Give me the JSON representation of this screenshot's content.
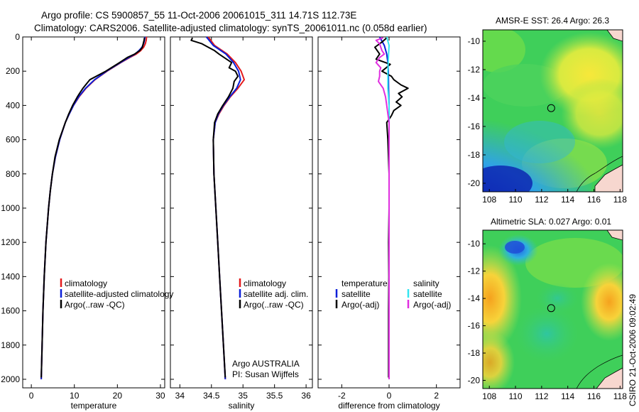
{
  "title": {
    "line1": "Argo profile: CS 5900857_55 11-Oct-2006 20061015_311 14.71S 112.73E",
    "line2": "Climatology: CARS2006. Satellite-adjusted climatology: synTS_20061011.nc (0.058d earlier)"
  },
  "colors": {
    "climatology": "#e41a1c",
    "satellite": "#0a1fd8",
    "argo": "#000000",
    "sat_salinity": "#33e5f0",
    "argo_salinity_adj": "#e02fe0"
  },
  "chart_data": [
    {
      "id": "temperature",
      "type": "line",
      "xlabel": "temperature",
      "xlim": [
        -2,
        31
      ],
      "ylim": [
        2050,
        0
      ],
      "xticks": [
        0,
        10,
        20,
        30
      ],
      "yticks": [
        0,
        200,
        400,
        600,
        800,
        1000,
        1200,
        1400,
        1600,
        1800,
        2000
      ],
      "legend": [
        "climatology",
        "satellite-adjusted climatology",
        "Argo(..raw -QC)"
      ],
      "series": [
        {
          "name": "climatology",
          "color_key": "climatology",
          "depth": [
            0,
            20,
            40,
            60,
            80,
            100,
            120,
            150,
            200,
            250,
            300,
            350,
            400,
            450,
            500,
            600,
            700,
            800,
            900,
            1000,
            1200,
            1400,
            1600,
            1800,
            2000
          ],
          "values": [
            26.8,
            26.7,
            26.5,
            26.1,
            25.4,
            24.4,
            22.9,
            20.8,
            17.6,
            14.8,
            12.7,
            11.1,
            9.8,
            8.8,
            7.9,
            6.6,
            5.6,
            4.9,
            4.4,
            4.0,
            3.4,
            3.0,
            2.7,
            2.5,
            2.3
          ]
        },
        {
          "name": "satellite-adjusted climatology",
          "color_key": "satellite",
          "depth": [
            0,
            20,
            40,
            60,
            80,
            100,
            120,
            150,
            200,
            250,
            300,
            350,
            400,
            450,
            500,
            600,
            700,
            800,
            900,
            1000,
            1200,
            1400,
            1600,
            1800,
            2000
          ],
          "values": [
            26.4,
            26.3,
            26.1,
            25.7,
            25.0,
            24.1,
            22.7,
            20.7,
            17.5,
            14.7,
            12.6,
            11.0,
            9.8,
            8.8,
            7.9,
            6.6,
            5.6,
            4.9,
            4.4,
            4.0,
            3.4,
            3.0,
            2.7,
            2.5,
            2.3
          ]
        },
        {
          "name": "Argo(..raw -QC)",
          "color_key": "argo",
          "depth": [
            5,
            20,
            40,
            60,
            80,
            100,
            120,
            150,
            200,
            250,
            300,
            330,
            350,
            400,
            450,
            500,
            600,
            700,
            800,
            900,
            1000,
            1200,
            1400,
            1600,
            1800,
            1990
          ],
          "values": [
            26.3,
            26.2,
            26.0,
            25.8,
            25.2,
            24.0,
            22.3,
            20.5,
            17.3,
            13.6,
            12.0,
            11.2,
            10.7,
            9.6,
            8.7,
            7.9,
            6.5,
            5.5,
            4.9,
            4.4,
            4.0,
            3.4,
            3.0,
            2.7,
            2.5,
            2.3
          ]
        }
      ]
    },
    {
      "id": "salinity",
      "type": "line",
      "xlabel": "salinity",
      "xlim": [
        33.85,
        36.1
      ],
      "ylim": [
        2050,
        0
      ],
      "xticks": [
        34,
        34.5,
        35,
        35.5,
        36
      ],
      "legend": [
        "climatology",
        "satellite adj. clim.",
        "Argo(..raw -QC)"
      ],
      "series": [
        {
          "name": "climatology",
          "color_key": "climatology",
          "depth": [
            0,
            50,
            100,
            150,
            200,
            250,
            300,
            350,
            400,
            450,
            500,
            600,
            800,
            1000,
            1200,
            1400,
            1600,
            1800,
            2000
          ],
          "values": [
            34.45,
            34.55,
            34.75,
            34.88,
            34.97,
            35.02,
            34.92,
            34.8,
            34.7,
            34.62,
            34.56,
            34.53,
            34.54,
            34.57,
            34.6,
            34.63,
            34.66,
            34.69,
            34.72
          ]
        },
        {
          "name": "satellite adj. clim.",
          "color_key": "satellite",
          "depth": [
            0,
            50,
            100,
            150,
            200,
            250,
            300,
            350,
            400,
            450,
            500,
            600,
            800,
            1000,
            1200,
            1400,
            1600,
            1800,
            2000
          ],
          "values": [
            34.42,
            34.53,
            34.73,
            34.85,
            34.93,
            34.96,
            34.9,
            34.79,
            34.69,
            34.61,
            34.56,
            34.53,
            34.54,
            34.57,
            34.6,
            34.63,
            34.66,
            34.69,
            34.72
          ]
        },
        {
          "name": "Argo(..raw -QC)",
          "color_key": "argo",
          "depth": [
            5,
            20,
            40,
            60,
            80,
            100,
            120,
            150,
            180,
            200,
            230,
            260,
            300,
            350,
            400,
            450,
            500,
            600,
            800,
            1000,
            1200,
            1400,
            1600,
            1800,
            1990
          ],
          "values": [
            34.2,
            34.18,
            34.35,
            34.45,
            34.55,
            34.62,
            34.7,
            34.82,
            34.78,
            34.88,
            34.92,
            34.86,
            34.84,
            34.77,
            34.68,
            34.6,
            34.55,
            34.53,
            34.54,
            34.57,
            34.6,
            34.63,
            34.66,
            34.69,
            34.72
          ]
        }
      ]
    },
    {
      "id": "difference",
      "type": "line",
      "xlabel": "difference from climatology",
      "xlim": [
        -3.0,
        3.0
      ],
      "ylim": [
        2050,
        0
      ],
      "xticks": [
        -2,
        0,
        2
      ],
      "legend_temperature": {
        "header": "temperature",
        "items": [
          "satellite",
          "Argo(-adj)"
        ]
      },
      "legend_salinity": {
        "header": "salinity",
        "items": [
          "satellite",
          "Argo(-adj)"
        ]
      },
      "series": [
        {
          "name": "temperature satellite",
          "color_key": "satellite",
          "depth": [
            0,
            50,
            100,
            150,
            200,
            300,
            400,
            600,
            800,
            1000,
            2000
          ],
          "values": [
            -0.4,
            -0.2,
            -0.1,
            -0.05,
            -0.03,
            -0.02,
            0.0,
            0.0,
            0.0,
            0.0,
            0.0
          ]
        },
        {
          "name": "temperature Argo(-adj)",
          "color_key": "argo",
          "depth": [
            5,
            30,
            60,
            100,
            130,
            160,
            200,
            230,
            250,
            280,
            300,
            330,
            350,
            380,
            400,
            430,
            460,
            500,
            600,
            800,
            1000,
            1200,
            1400,
            1600,
            1800,
            1990
          ],
          "values": [
            -0.1,
            -0.3,
            -0.6,
            -0.4,
            -0.55,
            0.05,
            -0.3,
            0.1,
            0.2,
            0.5,
            0.8,
            0.4,
            0.55,
            0.3,
            0.5,
            0.2,
            0.1,
            -0.1,
            -0.05,
            0.0,
            0.0,
            -0.02,
            -0.01,
            -0.02,
            -0.02,
            -0.02
          ]
        },
        {
          "name": "salinity satellite",
          "color_key": "sat_salinity",
          "depth": [
            0,
            50,
            100,
            200,
            300,
            400,
            600,
            800,
            1000,
            2000
          ],
          "values": [
            -0.1,
            0.0,
            -0.02,
            -0.05,
            -0.05,
            0.0,
            0.0,
            0.0,
            0.0,
            0.0
          ]
        },
        {
          "name": "salinity Argo(-adj)",
          "color_key": "argo_salinity_adj",
          "depth": [
            5,
            20,
            40,
            60,
            80,
            100,
            120,
            150,
            180,
            200,
            230,
            260,
            300,
            350,
            400,
            450,
            500,
            600,
            800,
            1000,
            1500,
            2000
          ],
          "values": [
            -0.25,
            -0.55,
            -0.4,
            -0.35,
            -0.3,
            -0.2,
            -0.4,
            -0.55,
            -0.35,
            -0.4,
            -0.4,
            -0.45,
            -0.25,
            -0.15,
            -0.1,
            -0.05,
            0.0,
            0.0,
            0.0,
            0.0,
            0.0,
            0.0
          ]
        }
      ]
    },
    {
      "id": "sst-map",
      "type": "heatmap",
      "title": "AMSR-E SST: 26.4 Argo: 26.3",
      "xlim": [
        107.5,
        118.2
      ],
      "ylim": [
        -20.6,
        -9.2
      ],
      "xticks": [
        108,
        110,
        112,
        114,
        116,
        118
      ],
      "yticks": [
        -10,
        -12,
        -14,
        -16,
        -18,
        -20
      ],
      "marker": {
        "lon": 112.73,
        "lat": -14.71
      }
    },
    {
      "id": "sla-map",
      "type": "heatmap",
      "title": "Altimetric SLA: 0.027 Argo: 0.01",
      "xlim": [
        107.5,
        118.2
      ],
      "ylim": [
        -20.6,
        -9.0
      ],
      "xticks": [
        108,
        110,
        112,
        114,
        116,
        118
      ],
      "yticks": [
        -10,
        -12,
        -14,
        -16,
        -18,
        -20
      ],
      "marker": {
        "lon": 112.73,
        "lat": -14.71
      }
    }
  ],
  "annotations": {
    "argo_label": "Argo AUSTRALIA",
    "pi_label": "PI: Susan Wijffels",
    "side_stamp": "CSIRO 21-Oct-2006 09:02:49"
  }
}
